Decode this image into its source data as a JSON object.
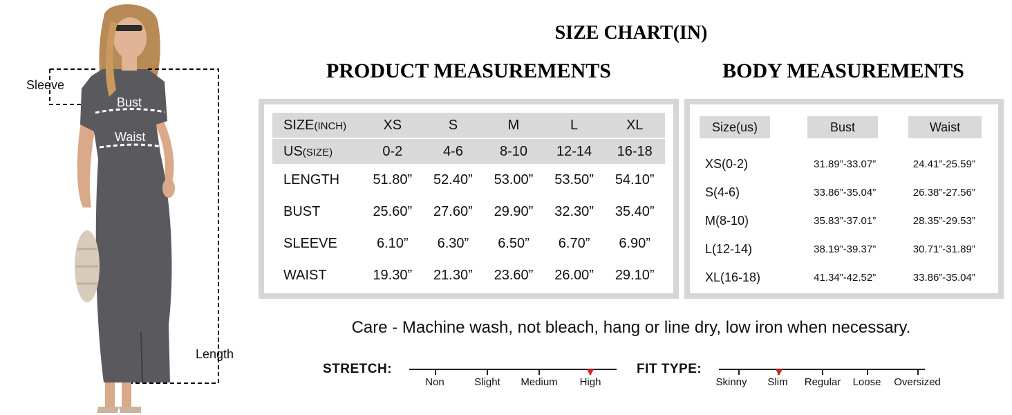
{
  "labels": {
    "sleeve": "Sleeve",
    "bust": "Bust",
    "waist": "Waist",
    "length": "Length"
  },
  "titles": {
    "chart": "SIZE CHART(IN)",
    "product": "PRODUCT MEASUREMENTS",
    "body": "BODY MEASUREMENTS"
  },
  "product_table": {
    "header": {
      "label": "SIZE",
      "unit": "(INCH)",
      "sizes": [
        "XS",
        "S",
        "M",
        "L",
        "XL"
      ]
    },
    "us_row": {
      "label": "US",
      "unit": "(SIZE)",
      "values": [
        "0-2",
        "4-6",
        "8-10",
        "12-14",
        "16-18"
      ]
    },
    "rows": [
      {
        "label": "LENGTH",
        "values": [
          "51.80”",
          "52.40”",
          "53.00”",
          "53.50”",
          "54.10”"
        ]
      },
      {
        "label": "BUST",
        "values": [
          "25.60”",
          "27.60”",
          "29.90”",
          "32.30”",
          "35.40”"
        ]
      },
      {
        "label": "SLEEVE",
        "values": [
          "6.10”",
          "6.30”",
          "6.50”",
          "6.70”",
          "6.90”"
        ]
      },
      {
        "label": "WAIST",
        "values": [
          "19.30”",
          "21.30”",
          "23.60”",
          "26.00”",
          "29.10”"
        ]
      }
    ]
  },
  "body_table": {
    "headers": [
      "Size(us)",
      "Bust",
      "Waist"
    ],
    "rows": [
      {
        "size": "XS(0-2)",
        "bust": "31.89”-33.07”",
        "waist": "24.41”-25.59”"
      },
      {
        "size": "S(4-6)",
        "bust": "33.86”-35.04”",
        "waist": "26.38”-27.56”"
      },
      {
        "size": "M(8-10)",
        "bust": "35.83”-37.01”",
        "waist": "28.35”-29.53”"
      },
      {
        "size": "L(12-14)",
        "bust": "38.19”-39.37”",
        "waist": "30.71”-31.89”"
      },
      {
        "size": "XL(16-18)",
        "bust": "41.34”-42.52”",
        "waist": "33.86”-35.04”"
      }
    ]
  },
  "care": "Care - Machine wash, not bleach, hang or line dry, low iron when necessary.",
  "stretch": {
    "label": "STRETCH:",
    "options": [
      "Non",
      "Slight",
      "Medium",
      "High"
    ],
    "selected": "High"
  },
  "fit_type": {
    "label": "FIT TYPE:",
    "options": [
      "Skinny",
      "Slim",
      "Regular",
      "Loose",
      "Oversized"
    ],
    "selected": "Slim"
  },
  "colors": {
    "dress": "#5a5a5e",
    "skin": "#d9a98a",
    "hair": "#b88a55",
    "table_border": "#d6d6d6",
    "shade": "#d9d9d9",
    "marker": "#e02020"
  }
}
